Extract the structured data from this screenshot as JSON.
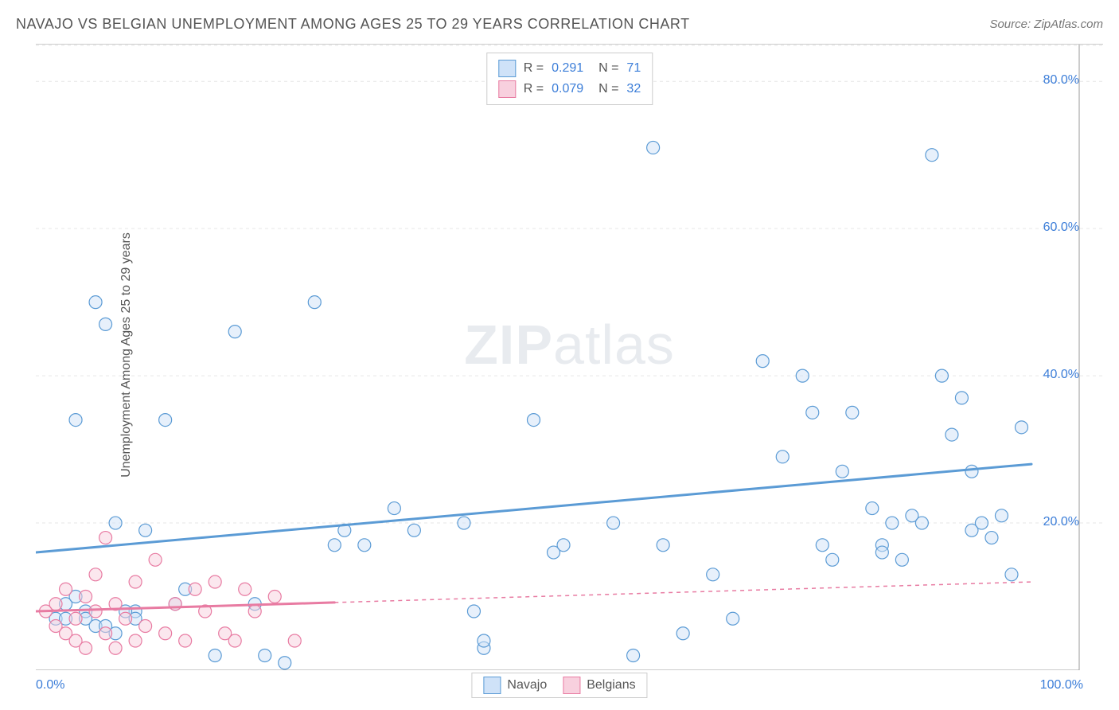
{
  "header": {
    "title": "NAVAJO VS BELGIAN UNEMPLOYMENT AMONG AGES 25 TO 29 YEARS CORRELATION CHART",
    "source": "Source: ZipAtlas.com"
  },
  "watermark": {
    "prefix": "ZIP",
    "suffix": "atlas"
  },
  "chart": {
    "type": "scatter",
    "ylabel": "Unemployment Among Ages 25 to 29 years",
    "xlim": [
      0,
      100
    ],
    "ylim": [
      0,
      85
    ],
    "xtick_labels": {
      "min": "0.0%",
      "max": "100.0%"
    },
    "ytick_values": [
      20,
      40,
      60,
      80
    ],
    "ytick_labels": [
      "20.0%",
      "40.0%",
      "60.0%",
      "80.0%"
    ],
    "xtick_minor": [
      10,
      20,
      30,
      40,
      50,
      60,
      70,
      80,
      90
    ],
    "grid_color": "#e6e6e6",
    "axis_color": "#999999",
    "background_color": "#ffffff",
    "marker_radius": 8,
    "marker_opacity": 0.5,
    "line_width": 3,
    "stats": [
      {
        "r": "0.291",
        "n": "71",
        "swatch_fill": "#cfe2f8",
        "swatch_border": "#5b9bd5"
      },
      {
        "r": "0.079",
        "n": "32",
        "swatch_fill": "#f8d0de",
        "swatch_border": "#e87ba2"
      }
    ],
    "series": [
      {
        "name": "Navajo",
        "color": "#5b9bd5",
        "fill": "#cfe2f8",
        "trend": {
          "y_at_x0": 16,
          "y_at_x100": 28,
          "solid_until_x": 100
        },
        "points": [
          [
            4,
            34
          ],
          [
            5,
            8
          ],
          [
            6,
            50
          ],
          [
            7,
            47
          ],
          [
            8,
            20
          ],
          [
            10,
            8
          ],
          [
            11,
            19
          ],
          [
            13,
            34
          ],
          [
            14,
            9
          ],
          [
            15,
            11
          ],
          [
            18,
            2
          ],
          [
            20,
            46
          ],
          [
            22,
            9
          ],
          [
            23,
            2
          ],
          [
            25,
            1
          ],
          [
            28,
            50
          ],
          [
            30,
            17
          ],
          [
            31,
            19
          ],
          [
            33,
            17
          ],
          [
            36,
            22
          ],
          [
            38,
            19
          ],
          [
            43,
            20
          ],
          [
            44,
            8
          ],
          [
            45,
            3
          ],
          [
            45,
            4
          ],
          [
            50,
            34
          ],
          [
            52,
            16
          ],
          [
            53,
            17
          ],
          [
            58,
            20
          ],
          [
            60,
            2
          ],
          [
            62,
            71
          ],
          [
            63,
            17
          ],
          [
            65,
            5
          ],
          [
            68,
            13
          ],
          [
            70,
            7
          ],
          [
            73,
            42
          ],
          [
            75,
            29
          ],
          [
            77,
            40
          ],
          [
            78,
            35
          ],
          [
            79,
            17
          ],
          [
            80,
            15
          ],
          [
            81,
            27
          ],
          [
            82,
            35
          ],
          [
            84,
            22
          ],
          [
            85,
            17
          ],
          [
            85,
            16
          ],
          [
            86,
            20
          ],
          [
            87,
            15
          ],
          [
            88,
            21
          ],
          [
            89,
            20
          ],
          [
            90,
            70
          ],
          [
            91,
            40
          ],
          [
            92,
            32
          ],
          [
            93,
            37
          ],
          [
            94,
            19
          ],
          [
            94,
            27
          ],
          [
            95,
            20
          ],
          [
            96,
            18
          ],
          [
            97,
            21
          ],
          [
            98,
            13
          ],
          [
            99,
            33
          ],
          [
            3,
            9
          ],
          [
            4,
            10
          ],
          [
            2,
            7
          ],
          [
            3,
            7
          ],
          [
            5,
            7
          ],
          [
            6,
            6
          ],
          [
            7,
            6
          ],
          [
            8,
            5
          ],
          [
            9,
            8
          ],
          [
            10,
            7
          ]
        ]
      },
      {
        "name": "Belgians",
        "color": "#e87ba2",
        "fill": "#f8d0de",
        "trend": {
          "y_at_x0": 8,
          "y_at_x100": 12,
          "solid_until_x": 30
        },
        "points": [
          [
            1,
            8
          ],
          [
            2,
            6
          ],
          [
            2,
            9
          ],
          [
            3,
            5
          ],
          [
            3,
            11
          ],
          [
            4,
            4
          ],
          [
            4,
            7
          ],
          [
            5,
            3
          ],
          [
            5,
            10
          ],
          [
            6,
            8
          ],
          [
            6,
            13
          ],
          [
            7,
            5
          ],
          [
            7,
            18
          ],
          [
            8,
            3
          ],
          [
            8,
            9
          ],
          [
            9,
            7
          ],
          [
            10,
            4
          ],
          [
            10,
            12
          ],
          [
            11,
            6
          ],
          [
            12,
            15
          ],
          [
            13,
            5
          ],
          [
            14,
            9
          ],
          [
            15,
            4
          ],
          [
            16,
            11
          ],
          [
            17,
            8
          ],
          [
            18,
            12
          ],
          [
            19,
            5
          ],
          [
            20,
            4
          ],
          [
            21,
            11
          ],
          [
            22,
            8
          ],
          [
            24,
            10
          ],
          [
            26,
            4
          ]
        ]
      }
    ],
    "legend_bottom": [
      {
        "label": "Navajo",
        "fill": "#cfe2f8",
        "border": "#5b9bd5"
      },
      {
        "label": "Belgians",
        "fill": "#f8d0de",
        "border": "#e87ba2"
      }
    ]
  }
}
